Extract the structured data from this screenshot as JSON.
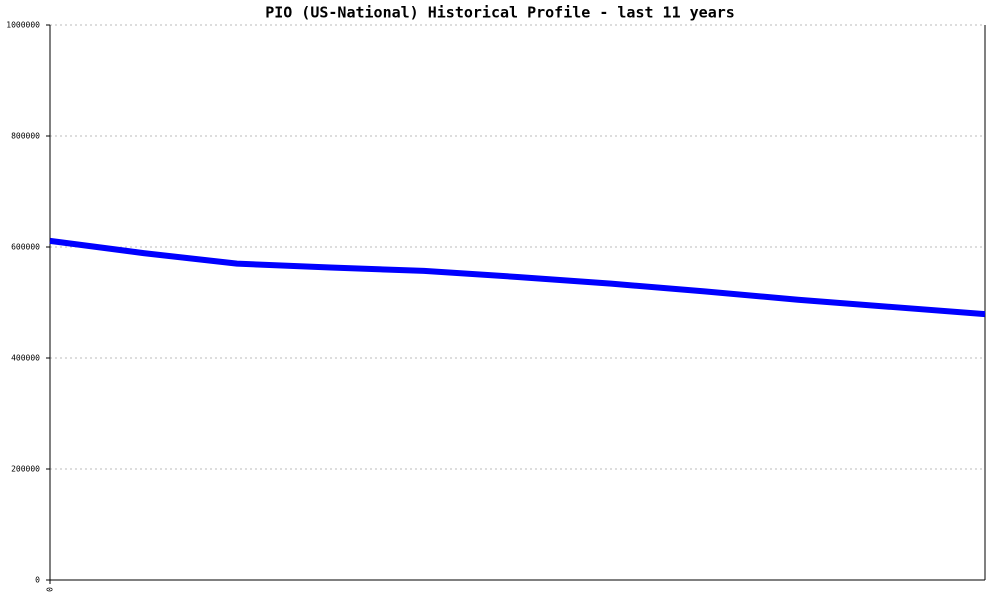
{
  "chart_data": {
    "type": "line",
    "title": "PIO (US-National) Historical Profile - last 11 years",
    "x": [
      0,
      1,
      2,
      3,
      4,
      5,
      6,
      7,
      8,
      9,
      10
    ],
    "values": [
      611000,
      589000,
      570000,
      563000,
      557000,
      546000,
      534000,
      520000,
      505000,
      492000,
      479000
    ],
    "color": "#0000ff",
    "xlim": [
      0,
      10
    ],
    "xticks": [
      0
    ],
    "ylim": [
      0,
      1000000
    ],
    "yticks": [
      0,
      200000,
      400000,
      600000,
      800000,
      1000000
    ],
    "grid": true
  }
}
